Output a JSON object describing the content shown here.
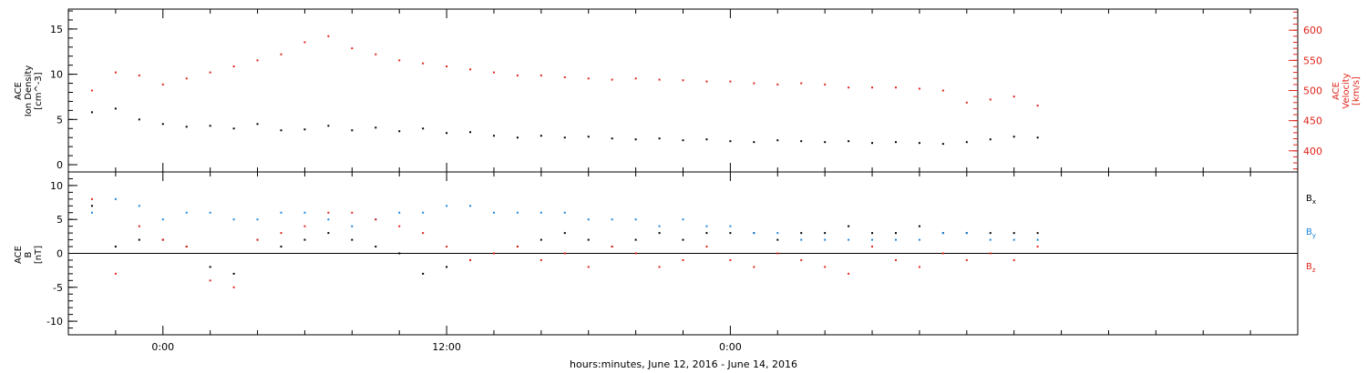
{
  "chart_data": [
    {
      "type": "scatter",
      "panel": "top",
      "left_axis": {
        "label_lines": [
          "ACE",
          "Ion Density",
          "[cm^-3]"
        ],
        "ylim": [
          -0.8,
          17.2
        ],
        "ticks": [
          0,
          5,
          10,
          15
        ],
        "color": "#000000"
      },
      "right_axis": {
        "label_lines": [
          "ACE",
          "Velocity",
          "[km/s]"
        ],
        "ylim": [
          365,
          635
        ],
        "ticks": [
          400,
          450,
          500,
          550,
          600
        ],
        "color": "#e0241b"
      },
      "series": [
        {
          "name": "",
          "axis": "left",
          "color": "#000000",
          "points": [
            [
              -3,
              5.8
            ],
            [
              -2,
              6.2
            ],
            [
              -1,
              5.0
            ],
            [
              0,
              4.5
            ],
            [
              1,
              4.2
            ],
            [
              2,
              4.3
            ],
            [
              3,
              4.0
            ],
            [
              4,
              4.5
            ],
            [
              5,
              3.8
            ],
            [
              6,
              3.9
            ],
            [
              7,
              4.3
            ],
            [
              8,
              3.8
            ],
            [
              9,
              4.1
            ],
            [
              10,
              3.7
            ],
            [
              11,
              4.0
            ],
            [
              12,
              3.5
            ],
            [
              13,
              3.6
            ],
            [
              14,
              3.2
            ],
            [
              15,
              3.0
            ],
            [
              16,
              3.2
            ],
            [
              17,
              3.0
            ],
            [
              18,
              3.1
            ],
            [
              19,
              2.9
            ],
            [
              20,
              2.8
            ],
            [
              21,
              2.9
            ],
            [
              22,
              2.7
            ],
            [
              23,
              2.8
            ],
            [
              24,
              2.6
            ],
            [
              25,
              2.5
            ],
            [
              26,
              2.7
            ],
            [
              27,
              2.6
            ],
            [
              28,
              2.5
            ],
            [
              29,
              2.6
            ],
            [
              30,
              2.4
            ],
            [
              31,
              2.5
            ],
            [
              32,
              2.4
            ],
            [
              33,
              2.3
            ],
            [
              34,
              2.5
            ],
            [
              35,
              2.8
            ],
            [
              36,
              3.1
            ],
            [
              37,
              3.0
            ]
          ]
        },
        {
          "name": "",
          "axis": "right",
          "color": "#e0241b",
          "points": [
            [
              -3,
              500
            ],
            [
              -2,
              530
            ],
            [
              -1,
              525
            ],
            [
              0,
              510
            ],
            [
              1,
              520
            ],
            [
              2,
              530
            ],
            [
              3,
              540
            ],
            [
              4,
              550
            ],
            [
              5,
              560
            ],
            [
              6,
              580
            ],
            [
              7,
              590
            ],
            [
              8,
              570
            ],
            [
              9,
              560
            ],
            [
              10,
              550
            ],
            [
              11,
              545
            ],
            [
              12,
              540
            ],
            [
              13,
              535
            ],
            [
              14,
              530
            ],
            [
              15,
              525
            ],
            [
              16,
              525
            ],
            [
              17,
              522
            ],
            [
              18,
              520
            ],
            [
              19,
              518
            ],
            [
              20,
              520
            ],
            [
              21,
              518
            ],
            [
              22,
              517
            ],
            [
              23,
              515
            ],
            [
              24,
              515
            ],
            [
              25,
              512
            ],
            [
              26,
              510
            ],
            [
              27,
              512
            ],
            [
              28,
              510
            ],
            [
              29,
              505
            ],
            [
              30,
              505
            ],
            [
              31,
              505
            ],
            [
              32,
              503
            ],
            [
              33,
              500
            ],
            [
              34,
              480
            ],
            [
              35,
              485
            ],
            [
              36,
              490
            ],
            [
              37,
              475
            ]
          ]
        }
      ]
    },
    {
      "type": "scatter",
      "panel": "bottom",
      "left_axis": {
        "label_lines": [
          "ACE",
          "B",
          "[nT]"
        ],
        "ylim": [
          -12,
          12
        ],
        "ticks": [
          -10,
          -5,
          0,
          5,
          10
        ],
        "color": "#000000"
      },
      "zero_line": true,
      "series": [
        {
          "name": "Bx",
          "color": "#000000",
          "points": [
            [
              -3,
              7
            ],
            [
              -2,
              1
            ],
            [
              -1,
              2
            ],
            [
              0,
              2
            ],
            [
              1,
              1
            ],
            [
              2,
              -2
            ],
            [
              3,
              -3
            ],
            [
              4,
              2
            ],
            [
              5,
              1
            ],
            [
              6,
              2
            ],
            [
              7,
              3
            ],
            [
              8,
              2
            ],
            [
              9,
              1
            ],
            [
              10,
              0
            ],
            [
              11,
              -3
            ],
            [
              12,
              -2
            ],
            [
              13,
              -1
            ],
            [
              14,
              0
            ],
            [
              15,
              1
            ],
            [
              16,
              2
            ],
            [
              17,
              3
            ],
            [
              18,
              2
            ],
            [
              19,
              1
            ],
            [
              20,
              2
            ],
            [
              21,
              3
            ],
            [
              22,
              2
            ],
            [
              23,
              3
            ],
            [
              24,
              3
            ],
            [
              25,
              3
            ],
            [
              26,
              2
            ],
            [
              27,
              3
            ],
            [
              28,
              3
            ],
            [
              29,
              4
            ],
            [
              30,
              3
            ],
            [
              31,
              3
            ],
            [
              32,
              4
            ],
            [
              33,
              3
            ],
            [
              34,
              3
            ],
            [
              35,
              3
            ],
            [
              36,
              3
            ],
            [
              37,
              3
            ]
          ]
        },
        {
          "name": "By",
          "color": "#1b86e0",
          "points": [
            [
              -3,
              6
            ],
            [
              -2,
              8
            ],
            [
              -1,
              7
            ],
            [
              0,
              5
            ],
            [
              1,
              6
            ],
            [
              2,
              6
            ],
            [
              3,
              5
            ],
            [
              4,
              5
            ],
            [
              5,
              6
            ],
            [
              6,
              6
            ],
            [
              7,
              5
            ],
            [
              8,
              4
            ],
            [
              9,
              5
            ],
            [
              10,
              6
            ],
            [
              11,
              6
            ],
            [
              12,
              7
            ],
            [
              13,
              7
            ],
            [
              14,
              6
            ],
            [
              15,
              6
            ],
            [
              16,
              6
            ],
            [
              17,
              6
            ],
            [
              18,
              5
            ],
            [
              19,
              5
            ],
            [
              20,
              5
            ],
            [
              21,
              4
            ],
            [
              22,
              5
            ],
            [
              23,
              4
            ],
            [
              24,
              4
            ],
            [
              25,
              3
            ],
            [
              26,
              3
            ],
            [
              27,
              2
            ],
            [
              28,
              2
            ],
            [
              29,
              2
            ],
            [
              30,
              2
            ],
            [
              31,
              2
            ],
            [
              32,
              2
            ],
            [
              33,
              3
            ],
            [
              34,
              3
            ],
            [
              35,
              2
            ],
            [
              36,
              2
            ],
            [
              37,
              2
            ]
          ]
        },
        {
          "name": "Bz",
          "color": "#e0241b",
          "points": [
            [
              -3,
              8
            ],
            [
              -2,
              -3
            ],
            [
              -1,
              4
            ],
            [
              0,
              2
            ],
            [
              1,
              1
            ],
            [
              2,
              -4
            ],
            [
              3,
              -5
            ],
            [
              4,
              2
            ],
            [
              5,
              3
            ],
            [
              6,
              4
            ],
            [
              7,
              6
            ],
            [
              8,
              6
            ],
            [
              9,
              5
            ],
            [
              10,
              4
            ],
            [
              11,
              3
            ],
            [
              12,
              1
            ],
            [
              13,
              -1
            ],
            [
              14,
              0
            ],
            [
              15,
              1
            ],
            [
              16,
              -1
            ],
            [
              17,
              0
            ],
            [
              18,
              -2
            ],
            [
              19,
              1
            ],
            [
              20,
              0
            ],
            [
              21,
              -2
            ],
            [
              22,
              -1
            ],
            [
              23,
              1
            ],
            [
              24,
              -1
            ],
            [
              25,
              -2
            ],
            [
              26,
              0
            ],
            [
              27,
              -1
            ],
            [
              28,
              -2
            ],
            [
              29,
              -3
            ],
            [
              30,
              1
            ],
            [
              31,
              -1
            ],
            [
              32,
              -2
            ],
            [
              33,
              0
            ],
            [
              34,
              -1
            ],
            [
              35,
              0
            ],
            [
              36,
              -1
            ],
            [
              37,
              1
            ]
          ]
        }
      ]
    }
  ],
  "x_axis": {
    "range_hours": [
      -4,
      48
    ],
    "tick_labels": [
      {
        "hour": 0,
        "label": "0:00"
      },
      {
        "hour": 12,
        "label": "12:00"
      },
      {
        "hour": 24,
        "label": "0:00"
      }
    ],
    "minor_tick_step_hours": 2,
    "title": "hours:minutes, June 12, 2016 - June 14, 2016"
  },
  "legend": {
    "entries": [
      {
        "base": "B",
        "sub": "x",
        "color": "#000000"
      },
      {
        "base": "B",
        "sub": "y",
        "color": "#1b86e0"
      },
      {
        "base": "B",
        "sub": "z",
        "color": "#e0241b"
      }
    ],
    "placement": "right"
  }
}
